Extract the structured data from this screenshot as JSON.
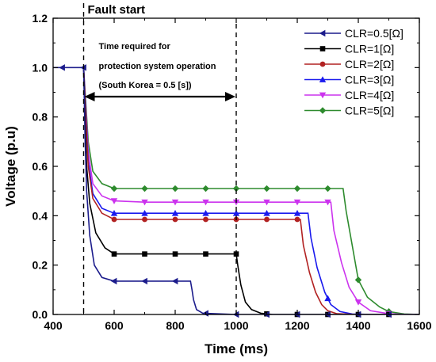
{
  "chart_data": {
    "type": "line",
    "xlabel": "Time (ms)",
    "ylabel": "Voltage (p.u)",
    "xlim": [
      400,
      1600
    ],
    "ylim": [
      0.0,
      1.2
    ],
    "xticks": [
      "400",
      "600",
      "800",
      "1000",
      "1200",
      "1400",
      "1600"
    ],
    "yticks": [
      "0.0",
      "0.2",
      "0.4",
      "0.6",
      "0.8",
      "1.0",
      "1.2"
    ],
    "grid": false,
    "legend_position": "top-right",
    "annotations": {
      "fault_start": "Fault start",
      "line1": "Time required for",
      "line2": "protection system operation",
      "line3": "(South Korea = 0.5 [s])",
      "fault_time": 500,
      "protection_time": 1000
    },
    "series": [
      {
        "name": "CLR=0.5[Ω]",
        "color": "#1c1c8c",
        "marker": "triangle-left",
        "points": [
          [
            400,
            1.0
          ],
          [
            500,
            1.0
          ],
          [
            505,
            0.7
          ],
          [
            510,
            0.5
          ],
          [
            520,
            0.32
          ],
          [
            535,
            0.2
          ],
          [
            560,
            0.15
          ],
          [
            600,
            0.135
          ],
          [
            700,
            0.135
          ],
          [
            800,
            0.135
          ],
          [
            850,
            0.135
          ],
          [
            855,
            0.1
          ],
          [
            860,
            0.06
          ],
          [
            870,
            0.02
          ],
          [
            890,
            0.005
          ],
          [
            1000,
            0
          ],
          [
            1600,
            0
          ]
        ],
        "marker_x": [
          430,
          500,
          600,
          700,
          800,
          900,
          1000,
          1100,
          1200,
          1300,
          1400,
          1500
        ]
      },
      {
        "name": "CLR=1[Ω]",
        "color": "#000000",
        "marker": "square",
        "points": [
          [
            500,
            1.0
          ],
          [
            505,
            0.78
          ],
          [
            510,
            0.6
          ],
          [
            520,
            0.45
          ],
          [
            540,
            0.33
          ],
          [
            570,
            0.27
          ],
          [
            600,
            0.245
          ],
          [
            700,
            0.245
          ],
          [
            800,
            0.245
          ],
          [
            900,
            0.245
          ],
          [
            1000,
            0.245
          ],
          [
            1005,
            0.2
          ],
          [
            1015,
            0.12
          ],
          [
            1030,
            0.05
          ],
          [
            1050,
            0.02
          ],
          [
            1080,
            0.005
          ],
          [
            1120,
            0
          ],
          [
            1600,
            0
          ]
        ],
        "marker_x": [
          600,
          700,
          800,
          900,
          1000,
          1100,
          1200,
          1300,
          1400,
          1500
        ]
      },
      {
        "name": "CLR=2[Ω]",
        "color": "#b22222",
        "marker": "circle",
        "points": [
          [
            500,
            1.0
          ],
          [
            505,
            0.85
          ],
          [
            515,
            0.6
          ],
          [
            530,
            0.47
          ],
          [
            560,
            0.41
          ],
          [
            600,
            0.385
          ],
          [
            700,
            0.385
          ],
          [
            800,
            0.385
          ],
          [
            900,
            0.385
          ],
          [
            1000,
            0.385
          ],
          [
            1100,
            0.385
          ],
          [
            1200,
            0.385
          ],
          [
            1210,
            0.385
          ],
          [
            1220,
            0.28
          ],
          [
            1240,
            0.17
          ],
          [
            1260,
            0.09
          ],
          [
            1280,
            0.04
          ],
          [
            1300,
            0.015
          ],
          [
            1330,
            0.003
          ],
          [
            1400,
            0
          ],
          [
            1600,
            0
          ]
        ],
        "marker_x": [
          600,
          700,
          800,
          900,
          1000,
          1100,
          1200
        ]
      },
      {
        "name": "CLR=3[Ω]",
        "color": "#1a1aee",
        "marker": "triangle-up",
        "points": [
          [
            500,
            1.0
          ],
          [
            505,
            0.87
          ],
          [
            515,
            0.62
          ],
          [
            530,
            0.49
          ],
          [
            560,
            0.43
          ],
          [
            600,
            0.41
          ],
          [
            700,
            0.41
          ],
          [
            800,
            0.41
          ],
          [
            900,
            0.41
          ],
          [
            1000,
            0.41
          ],
          [
            1100,
            0.41
          ],
          [
            1200,
            0.41
          ],
          [
            1235,
            0.41
          ],
          [
            1245,
            0.31
          ],
          [
            1265,
            0.19
          ],
          [
            1290,
            0.09
          ],
          [
            1310,
            0.04
          ],
          [
            1340,
            0.012
          ],
          [
            1380,
            0.002
          ],
          [
            1450,
            0
          ],
          [
            1600,
            0
          ]
        ],
        "marker_x": [
          600,
          700,
          800,
          900,
          1000,
          1100,
          1200,
          1300
        ]
      },
      {
        "name": "CLR=4[Ω]",
        "color": "#cc33ee",
        "marker": "triangle-down",
        "points": [
          [
            500,
            1.0
          ],
          [
            505,
            0.88
          ],
          [
            515,
            0.66
          ],
          [
            530,
            0.53
          ],
          [
            560,
            0.48
          ],
          [
            600,
            0.46
          ],
          [
            700,
            0.455
          ],
          [
            800,
            0.455
          ],
          [
            900,
            0.455
          ],
          [
            1000,
            0.455
          ],
          [
            1100,
            0.455
          ],
          [
            1200,
            0.455
          ],
          [
            1300,
            0.455
          ],
          [
            1310,
            0.455
          ],
          [
            1320,
            0.34
          ],
          [
            1345,
            0.21
          ],
          [
            1370,
            0.11
          ],
          [
            1400,
            0.05
          ],
          [
            1440,
            0.015
          ],
          [
            1500,
            0.003
          ],
          [
            1560,
            0
          ],
          [
            1600,
            0
          ]
        ],
        "marker_x": [
          600,
          700,
          800,
          900,
          1000,
          1100,
          1200,
          1300,
          1400,
          1500
        ]
      },
      {
        "name": "CLR=5[Ω]",
        "color": "#2e8b2e",
        "marker": "diamond",
        "points": [
          [
            500,
            1.0
          ],
          [
            505,
            0.9
          ],
          [
            515,
            0.7
          ],
          [
            530,
            0.58
          ],
          [
            560,
            0.53
          ],
          [
            600,
            0.51
          ],
          [
            700,
            0.51
          ],
          [
            800,
            0.51
          ],
          [
            900,
            0.51
          ],
          [
            1000,
            0.51
          ],
          [
            1100,
            0.51
          ],
          [
            1200,
            0.51
          ],
          [
            1300,
            0.51
          ],
          [
            1350,
            0.51
          ],
          [
            1360,
            0.42
          ],
          [
            1380,
            0.28
          ],
          [
            1400,
            0.14
          ],
          [
            1430,
            0.07
          ],
          [
            1470,
            0.03
          ],
          [
            1500,
            0.012
          ],
          [
            1550,
            0.002
          ],
          [
            1600,
            0
          ]
        ],
        "marker_x": [
          600,
          700,
          800,
          900,
          1000,
          1100,
          1200,
          1300,
          1400,
          1500
        ]
      }
    ]
  }
}
